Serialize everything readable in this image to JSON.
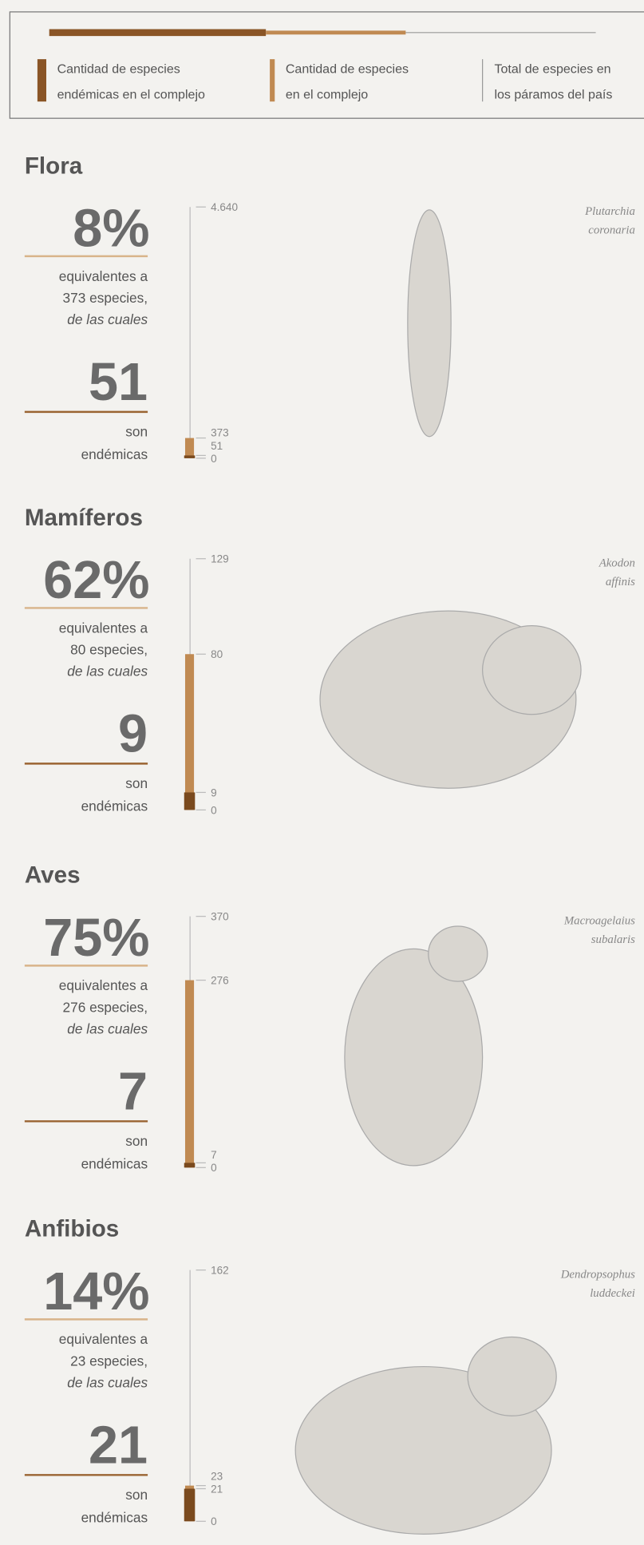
{
  "legend": [
    {
      "lines": [
        "Cantidad de especies",
        "endémicas en el complejo"
      ]
    },
    {
      "lines": [
        "Cantidad de especies",
        "en el complejo"
      ]
    },
    {
      "lines": [
        "Total de especies en",
        "los páramos del país"
      ]
    }
  ],
  "sections": [
    {
      "title": "Flora",
      "percent": "8%",
      "description": [
        "equivalentes a",
        "373 especies,",
        "de las cuales"
      ],
      "endemic_text": [
        "son",
        "endémicas"
      ],
      "total": {
        "value": 4640,
        "label": "4.640"
      },
      "species": 373,
      "endemic": 51,
      "axis_min": 0,
      "species_name": [
        "Plutarchia",
        "coronaria"
      ]
    },
    {
      "title": "Mamíferos",
      "percent": "62%",
      "description": [
        "equivalentes a",
        "80 especies,",
        "de las cuales"
      ],
      "endemic_text": [
        "son",
        "endémicas"
      ],
      "total": 129,
      "species": 80,
      "endemic": 9,
      "axis_min": 0,
      "species_name": [
        "Akodon",
        "affinis"
      ]
    },
    {
      "title": "Aves",
      "percent": "75%",
      "description": [
        "equivalentes a",
        "276 especies,",
        "de las cuales"
      ],
      "endemic_text": [
        "son",
        "endémicas"
      ],
      "total": 370,
      "species": 276,
      "endemic": 7,
      "axis_min": 0,
      "species_name": [
        "Macroagelaius",
        "subalaris"
      ]
    },
    {
      "title": "Anfibios",
      "percent": "14%",
      "description": [
        "equivalentes a",
        "23 especies,",
        "de las cuales"
      ],
      "endemic_text": [
        "son",
        "endémicas"
      ],
      "total": 162,
      "species": 23,
      "endemic": 21,
      "axis_min": 0,
      "species_name": [
        "Dendropsophus",
        "luddeckei"
      ]
    }
  ]
}
